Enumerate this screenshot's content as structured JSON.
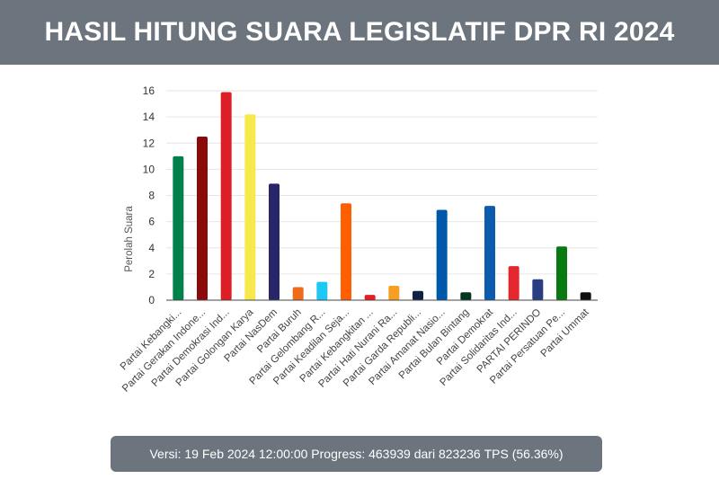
{
  "header": {
    "title": "HASIL HITUNG SUARA LEGISLATIF DPR RI 2024"
  },
  "footer": {
    "version_label": "Versi:",
    "version_datetime": "19 Feb 2024 12:00:00",
    "progress_label": "Progress:",
    "progress_done": "463939",
    "progress_sep": "dari",
    "progress_total": "823236",
    "progress_unit": "TPS",
    "progress_percent": "(56.36%)"
  },
  "chart_data": {
    "type": "bar",
    "title": "",
    "xlabel": "",
    "ylabel": "Perolah Suara",
    "ylim": [
      0,
      16
    ],
    "yticks": [
      "0",
      "2",
      "4",
      "6",
      "8",
      "10",
      "12",
      "14",
      "16"
    ],
    "grid": true,
    "legend": "none",
    "categories": [
      "Partai Kebangki...",
      "Partai Gerakan Indone...",
      "Partai Demokrasi Ind...",
      "Partai Golongan Karya",
      "Partai NasDem",
      "Partai Buruh",
      "Partai Gelombang R...",
      "Partai Keadilan Seja...",
      "Partai Kebangkitan ...",
      "Partai Hati Nurani Ra...",
      "Partai Garda Republi...",
      "Partai Amanat Nasio...",
      "Partai Bulan Bintang",
      "Partai Demokrat",
      "Partai Solidaritas Ind...",
      "PARTAI PERINDO",
      "Partai Persatuan Pe...",
      "Partai Ummat"
    ],
    "values": [
      11.0,
      12.5,
      15.9,
      14.2,
      8.9,
      1.0,
      1.4,
      7.4,
      0.4,
      1.1,
      0.7,
      6.9,
      0.6,
      7.2,
      2.6,
      1.6,
      4.1,
      0.6
    ],
    "colors": [
      "#00804a",
      "#8b0b0b",
      "#dc1f26",
      "#f7e94b",
      "#28266b",
      "#ee6b1a",
      "#1dc8f5",
      "#ff5f00",
      "#e31e24",
      "#f59f23",
      "#0e2344",
      "#0058a9",
      "#00361d",
      "#0b5cad",
      "#e4262f",
      "#283d82",
      "#087a12",
      "#111111"
    ]
  }
}
